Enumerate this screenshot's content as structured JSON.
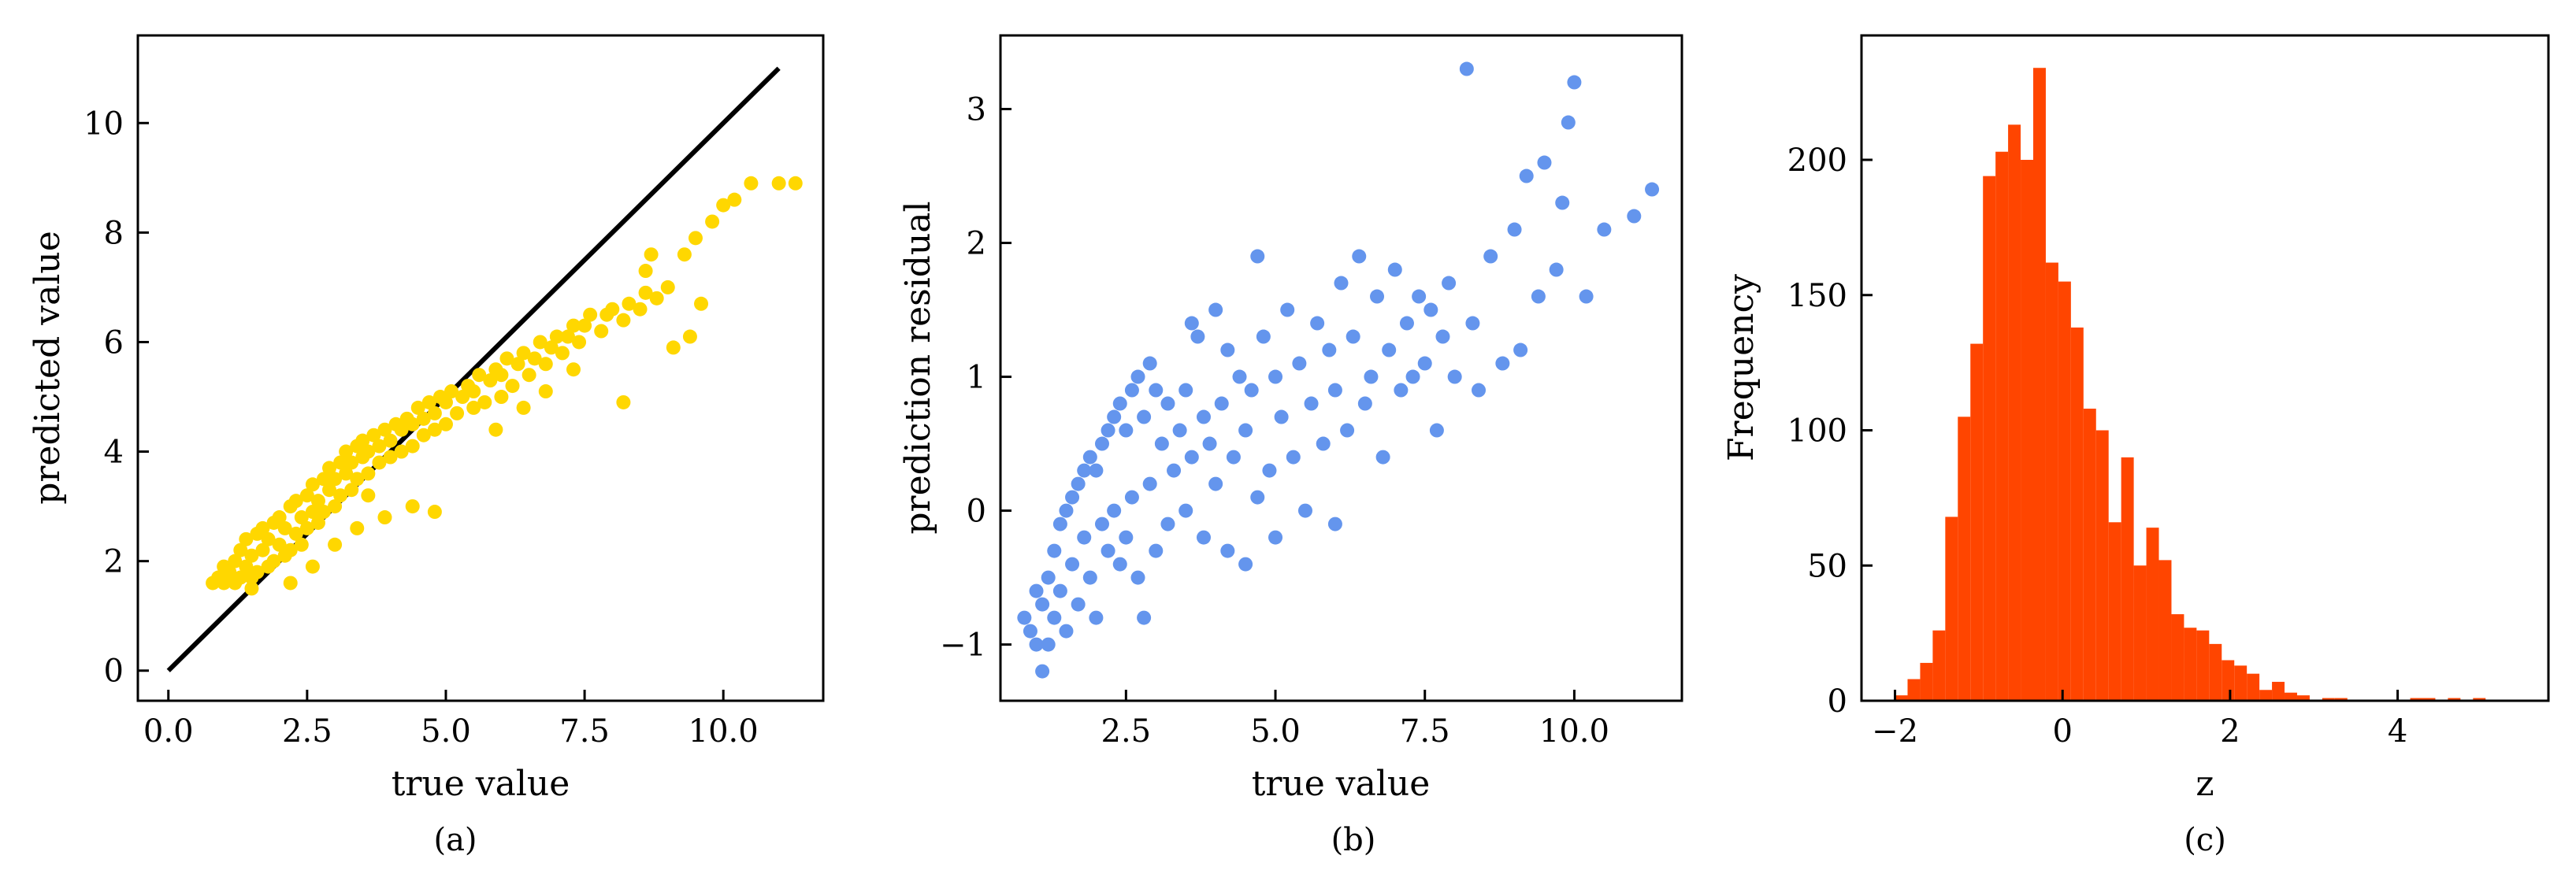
{
  "chart_data": [
    {
      "type": "scatter",
      "caption": "(a)",
      "xlabel": "true value",
      "ylabel": "predicted value",
      "xlim": [
        -0.55,
        11.8
      ],
      "ylim": [
        -0.55,
        11.6
      ],
      "xticks": [
        0.0,
        2.5,
        5.0,
        7.5,
        10.0
      ],
      "xtick_labels": [
        "0.0",
        "2.5",
        "5.0",
        "7.5",
        "10.0"
      ],
      "yticks": [
        0,
        2,
        4,
        6,
        8,
        10
      ],
      "ytick_labels": [
        "0",
        "2",
        "4",
        "6",
        "8",
        "10"
      ],
      "point_color": "#FFD700",
      "reference_line": {
        "x": [
          0,
          11
        ],
        "y": [
          0,
          11
        ],
        "color": "#000000"
      },
      "points": [
        [
          0.8,
          1.6
        ],
        [
          0.9,
          1.7
        ],
        [
          1.0,
          1.6
        ],
        [
          1.0,
          1.9
        ],
        [
          1.1,
          1.8
        ],
        [
          1.2,
          1.6
        ],
        [
          1.2,
          2.0
        ],
        [
          1.3,
          1.7
        ],
        [
          1.3,
          2.2
        ],
        [
          1.4,
          1.9
        ],
        [
          1.4,
          2.4
        ],
        [
          1.5,
          1.7
        ],
        [
          1.5,
          2.1
        ],
        [
          1.6,
          2.5
        ],
        [
          1.6,
          1.8
        ],
        [
          1.7,
          2.2
        ],
        [
          1.7,
          2.6
        ],
        [
          1.8,
          1.9
        ],
        [
          1.8,
          2.4
        ],
        [
          1.9,
          2.7
        ],
        [
          1.9,
          2.0
        ],
        [
          2.0,
          2.3
        ],
        [
          2.0,
          2.8
        ],
        [
          2.1,
          2.1
        ],
        [
          2.1,
          2.6
        ],
        [
          2.2,
          3.0
        ],
        [
          2.2,
          2.2
        ],
        [
          2.3,
          2.5
        ],
        [
          2.3,
          3.1
        ],
        [
          2.4,
          2.3
        ],
        [
          2.4,
          2.8
        ],
        [
          2.5,
          3.2
        ],
        [
          2.5,
          2.6
        ],
        [
          2.6,
          2.9
        ],
        [
          2.6,
          3.4
        ],
        [
          2.7,
          2.7
        ],
        [
          2.7,
          3.1
        ],
        [
          2.8,
          3.5
        ],
        [
          2.8,
          2.9
        ],
        [
          2.9,
          3.3
        ],
        [
          2.9,
          3.7
        ],
        [
          3.0,
          3.0
        ],
        [
          3.0,
          3.5
        ],
        [
          3.1,
          3.8
        ],
        [
          3.1,
          3.2
        ],
        [
          3.2,
          3.6
        ],
        [
          3.2,
          4.0
        ],
        [
          3.3,
          3.3
        ],
        [
          3.3,
          3.8
        ],
        [
          3.4,
          4.1
        ],
        [
          3.4,
          3.5
        ],
        [
          3.5,
          3.9
        ],
        [
          3.5,
          4.2
        ],
        [
          3.6,
          3.6
        ],
        [
          3.6,
          4.0
        ],
        [
          3.7,
          4.3
        ],
        [
          3.8,
          3.8
        ],
        [
          3.8,
          4.1
        ],
        [
          3.9,
          4.4
        ],
        [
          4.0,
          3.9
        ],
        [
          4.0,
          4.2
        ],
        [
          4.1,
          4.5
        ],
        [
          4.2,
          4.0
        ],
        [
          4.2,
          4.4
        ],
        [
          4.3,
          4.6
        ],
        [
          4.4,
          4.1
        ],
        [
          4.4,
          4.5
        ],
        [
          4.5,
          4.8
        ],
        [
          4.6,
          4.3
        ],
        [
          4.6,
          4.6
        ],
        [
          4.7,
          4.9
        ],
        [
          4.8,
          4.4
        ],
        [
          4.8,
          4.7
        ],
        [
          4.9,
          5.0
        ],
        [
          5.0,
          4.5
        ],
        [
          5.0,
          4.9
        ],
        [
          5.1,
          5.1
        ],
        [
          5.2,
          4.7
        ],
        [
          5.3,
          5.0
        ],
        [
          5.4,
          5.2
        ],
        [
          5.5,
          4.8
        ],
        [
          5.5,
          5.1
        ],
        [
          5.6,
          5.4
        ],
        [
          5.7,
          4.9
        ],
        [
          5.8,
          5.3
        ],
        [
          5.9,
          5.5
        ],
        [
          6.0,
          5.0
        ],
        [
          6.0,
          5.4
        ],
        [
          6.1,
          5.7
        ],
        [
          6.2,
          5.2
        ],
        [
          6.3,
          5.6
        ],
        [
          6.4,
          5.8
        ],
        [
          6.5,
          5.4
        ],
        [
          6.6,
          5.7
        ],
        [
          6.7,
          6.0
        ],
        [
          6.8,
          5.6
        ],
        [
          6.9,
          5.9
        ],
        [
          7.0,
          6.1
        ],
        [
          7.1,
          5.8
        ],
        [
          7.2,
          6.1
        ],
        [
          7.3,
          6.3
        ],
        [
          7.4,
          6.0
        ],
        [
          7.5,
          6.3
        ],
        [
          7.6,
          6.5
        ],
        [
          7.8,
          6.2
        ],
        [
          7.9,
          6.5
        ],
        [
          8.0,
          6.6
        ],
        [
          8.2,
          6.4
        ],
        [
          8.3,
          6.7
        ],
        [
          8.5,
          6.6
        ],
        [
          8.6,
          6.9
        ],
        [
          8.8,
          6.8
        ],
        [
          9.0,
          7.0
        ],
        [
          8.7,
          7.6
        ],
        [
          8.6,
          7.3
        ],
        [
          9.3,
          7.6
        ],
        [
          9.5,
          7.9
        ],
        [
          9.8,
          8.2
        ],
        [
          10.0,
          8.5
        ],
        [
          10.2,
          8.6
        ],
        [
          10.5,
          8.9
        ],
        [
          11.0,
          8.9
        ],
        [
          11.3,
          8.9
        ],
        [
          8.2,
          4.9
        ],
        [
          9.4,
          6.1
        ],
        [
          9.6,
          6.7
        ],
        [
          9.1,
          5.9
        ],
        [
          3.9,
          2.8
        ],
        [
          4.4,
          3.0
        ],
        [
          4.8,
          2.9
        ],
        [
          3.4,
          2.6
        ],
        [
          3.0,
          2.3
        ],
        [
          3.6,
          3.2
        ],
        [
          1.5,
          1.5
        ],
        [
          2.2,
          1.6
        ],
        [
          2.6,
          1.9
        ],
        [
          5.9,
          4.4
        ],
        [
          6.4,
          4.8
        ],
        [
          6.8,
          5.1
        ],
        [
          7.3,
          5.5
        ]
      ]
    },
    {
      "type": "scatter",
      "caption": "(b)",
      "xlabel": "true value",
      "ylabel": "prediction residual",
      "xlim": [
        0.4,
        11.8
      ],
      "ylim": [
        -1.42,
        3.55
      ],
      "xticks": [
        2.5,
        5.0,
        7.5,
        10.0
      ],
      "xtick_labels": [
        "2.5",
        "5.0",
        "7.5",
        "10.0"
      ],
      "yticks": [
        -1,
        0,
        1,
        2,
        3
      ],
      "ytick_labels": [
        "−1",
        "0",
        "1",
        "2",
        "3"
      ],
      "point_color": "#6495ED",
      "points": [
        [
          0.8,
          -0.8
        ],
        [
          0.9,
          -0.9
        ],
        [
          1.0,
          -1.0
        ],
        [
          1.0,
          -0.6
        ],
        [
          1.1,
          -1.2
        ],
        [
          1.1,
          -0.7
        ],
        [
          1.2,
          -0.5
        ],
        [
          1.2,
          -1.0
        ],
        [
          1.3,
          -0.3
        ],
        [
          1.3,
          -0.8
        ],
        [
          1.4,
          -0.1
        ],
        [
          1.4,
          -0.6
        ],
        [
          1.5,
          0.0
        ],
        [
          1.5,
          -0.9
        ],
        [
          1.6,
          0.1
        ],
        [
          1.6,
          -0.4
        ],
        [
          1.7,
          0.2
        ],
        [
          1.7,
          -0.7
        ],
        [
          1.8,
          0.3
        ],
        [
          1.8,
          -0.2
        ],
        [
          1.9,
          0.4
        ],
        [
          1.9,
          -0.5
        ],
        [
          2.0,
          0.3
        ],
        [
          2.0,
          -0.8
        ],
        [
          2.1,
          0.5
        ],
        [
          2.1,
          -0.1
        ],
        [
          2.2,
          0.6
        ],
        [
          2.2,
          -0.3
        ],
        [
          2.3,
          0.7
        ],
        [
          2.3,
          0.0
        ],
        [
          2.4,
          0.8
        ],
        [
          2.4,
          -0.4
        ],
        [
          2.5,
          0.6
        ],
        [
          2.5,
          -0.2
        ],
        [
          2.6,
          0.9
        ],
        [
          2.6,
          0.1
        ],
        [
          2.7,
          1.0
        ],
        [
          2.7,
          -0.5
        ],
        [
          2.8,
          0.7
        ],
        [
          2.8,
          -0.8
        ],
        [
          2.9,
          1.1
        ],
        [
          2.9,
          0.2
        ],
        [
          3.0,
          0.9
        ],
        [
          3.0,
          -0.3
        ],
        [
          3.1,
          0.5
        ],
        [
          3.2,
          0.8
        ],
        [
          3.2,
          -0.1
        ],
        [
          3.3,
          0.3
        ],
        [
          3.4,
          0.6
        ],
        [
          3.5,
          0.9
        ],
        [
          3.5,
          0.0
        ],
        [
          3.6,
          1.4
        ],
        [
          3.6,
          0.4
        ],
        [
          3.7,
          1.3
        ],
        [
          3.8,
          0.7
        ],
        [
          3.8,
          -0.2
        ],
        [
          3.9,
          0.5
        ],
        [
          4.0,
          1.5
        ],
        [
          4.0,
          0.2
        ],
        [
          4.1,
          0.8
        ],
        [
          4.2,
          1.2
        ],
        [
          4.2,
          -0.3
        ],
        [
          4.3,
          0.4
        ],
        [
          4.4,
          1.0
        ],
        [
          4.5,
          0.6
        ],
        [
          4.5,
          -0.4
        ],
        [
          4.6,
          0.9
        ],
        [
          4.7,
          1.9
        ],
        [
          4.7,
          0.1
        ],
        [
          4.8,
          1.3
        ],
        [
          4.9,
          0.3
        ],
        [
          5.0,
          1.0
        ],
        [
          5.0,
          -0.2
        ],
        [
          5.1,
          0.7
        ],
        [
          5.2,
          1.5
        ],
        [
          5.3,
          0.4
        ],
        [
          5.4,
          1.1
        ],
        [
          5.5,
          0.0
        ],
        [
          5.6,
          0.8
        ],
        [
          5.7,
          1.4
        ],
        [
          5.8,
          0.5
        ],
        [
          5.9,
          1.2
        ],
        [
          6.0,
          -0.1
        ],
        [
          6.0,
          0.9
        ],
        [
          6.1,
          1.7
        ],
        [
          6.2,
          0.6
        ],
        [
          6.3,
          1.3
        ],
        [
          6.4,
          1.9
        ],
        [
          6.5,
          0.8
        ],
        [
          6.6,
          1.0
        ],
        [
          6.7,
          1.6
        ],
        [
          6.8,
          0.4
        ],
        [
          6.9,
          1.2
        ],
        [
          7.0,
          1.8
        ],
        [
          7.1,
          0.9
        ],
        [
          7.2,
          1.4
        ],
        [
          7.3,
          1.0
        ],
        [
          7.4,
          1.6
        ],
        [
          7.5,
          1.1
        ],
        [
          7.6,
          1.5
        ],
        [
          7.7,
          0.6
        ],
        [
          7.8,
          1.3
        ],
        [
          7.9,
          1.7
        ],
        [
          8.0,
          1.0
        ],
        [
          8.2,
          3.3
        ],
        [
          8.3,
          1.4
        ],
        [
          8.4,
          0.9
        ],
        [
          8.6,
          1.9
        ],
        [
          8.8,
          1.1
        ],
        [
          9.0,
          2.1
        ],
        [
          9.2,
          2.5
        ],
        [
          9.4,
          1.6
        ],
        [
          9.5,
          2.6
        ],
        [
          9.7,
          1.8
        ],
        [
          9.8,
          2.3
        ],
        [
          9.9,
          2.9
        ],
        [
          10.0,
          3.2
        ],
        [
          10.2,
          1.6
        ],
        [
          10.5,
          2.1
        ],
        [
          11.0,
          2.2
        ],
        [
          11.3,
          2.4
        ],
        [
          9.1,
          1.2
        ]
      ]
    },
    {
      "type": "bar",
      "subtype": "histogram",
      "caption": "(c)",
      "xlabel": "z",
      "ylabel": "Frequency",
      "xlim": [
        -2.4,
        5.8
      ],
      "ylim": [
        0,
        246
      ],
      "xticks": [
        -2,
        0,
        2,
        4
      ],
      "xtick_labels": [
        "−2",
        "0",
        "2",
        "4"
      ],
      "yticks": [
        0,
        50,
        100,
        150,
        200
      ],
      "ytick_labels": [
        "0",
        "50",
        "100",
        "150",
        "200"
      ],
      "bar_color": "#FF4500",
      "bin_start": -2.0,
      "bin_width": 0.15,
      "counts": [
        2,
        8,
        14,
        26,
        68,
        105,
        132,
        194,
        203,
        213,
        200,
        234,
        162,
        155,
        138,
        108,
        100,
        66,
        90,
        50,
        64,
        52,
        32,
        27,
        26,
        21,
        15,
        13,
        10,
        4,
        7,
        3,
        2,
        0,
        1,
        1,
        0,
        0,
        0,
        0,
        0,
        1,
        1,
        0,
        1,
        0,
        1
      ]
    }
  ]
}
